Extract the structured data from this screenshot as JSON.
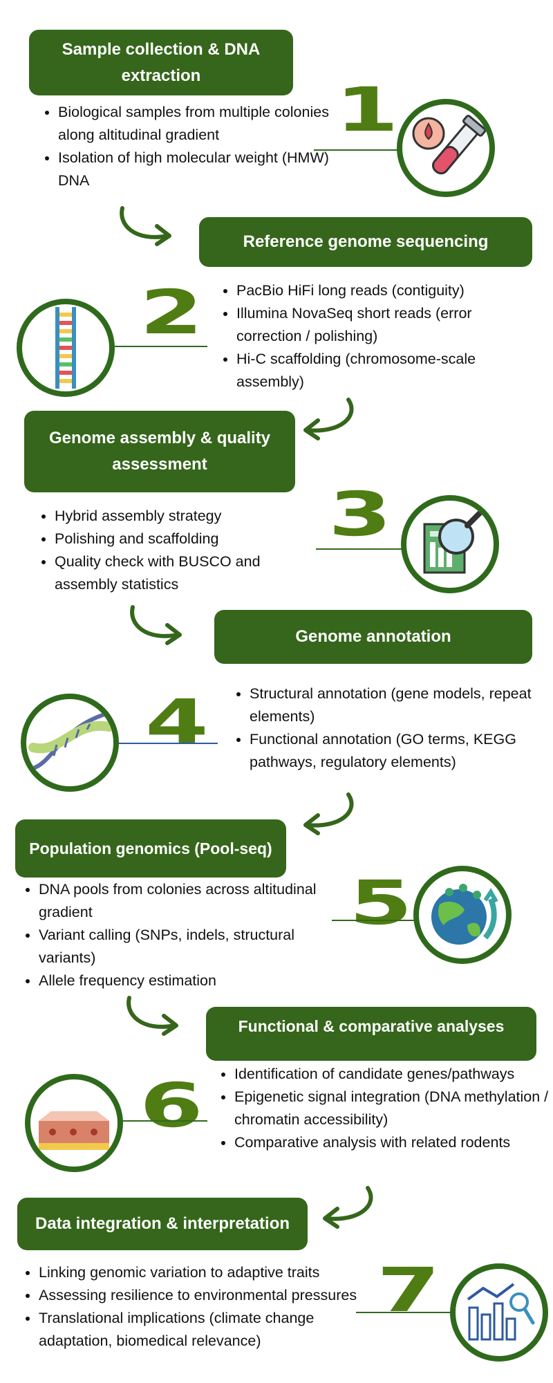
{
  "steps": [
    {
      "number": "1",
      "title": "Sample collection & DNA extraction",
      "bullets": [
        "Biological samples from multiple colonies along altitudinal gradient",
        "Isolation of high molecular weight (HMW) DNA"
      ],
      "icon": "test-tube-icon"
    },
    {
      "number": "2",
      "title": "Reference genome sequencing",
      "bullets": [
        "PacBio HiFi long reads (contiguity)",
        "Illumina NovaSeq short reads (error correction / polishing)",
        "Hi-C scaffolding (chromosome-scale assembly)"
      ],
      "icon": "dna-ladder-icon"
    },
    {
      "number": "3",
      "title": "Genome assembly & quality assessment",
      "bullets": [
        "Hybrid assembly strategy",
        "Polishing and scaffolding",
        "Quality check with BUSCO and assembly statistics"
      ],
      "icon": "magnifier-report-icon"
    },
    {
      "number": "4",
      "title": "Genome annotation",
      "bullets": [
        "Structural annotation (gene models, repeat elements)",
        "Functional annotation (GO terms, KEGG pathways, regulatory elements)"
      ],
      "icon": "dna-helix-icon"
    },
    {
      "number": "5",
      "title": "Population genomics (Pool-seq)",
      "bullets": [
        "DNA pools from colonies across altitudinal gradient",
        "Variant calling (SNPs, indels, structural variants)",
        "Allele frequency estimation"
      ],
      "icon": "globe-locations-icon"
    },
    {
      "number": "6",
      "title": "Functional & comparative analyses",
      "bullets": [
        "Identification of candidate genes/pathways",
        "Epigenetic signal integration (DNA methylation / chromatin accessibility)",
        "Comparative analysis with related rodents"
      ],
      "icon": "tissue-cells-icon"
    },
    {
      "number": "7",
      "title": "Data integration & interpretation",
      "bullets": [
        "Linking genomic variation to adaptive traits",
        "Assessing resilience to environmental pressures",
        "Translational implications (climate change adaptation, biomedical relevance)"
      ],
      "icon": "bar-chart-magnifier-icon"
    }
  ],
  "colors": {
    "box": "#35661b",
    "number": "#4f7d13",
    "circle_border": "#2f6a1c",
    "connector_blue": "#2c5aa0"
  }
}
